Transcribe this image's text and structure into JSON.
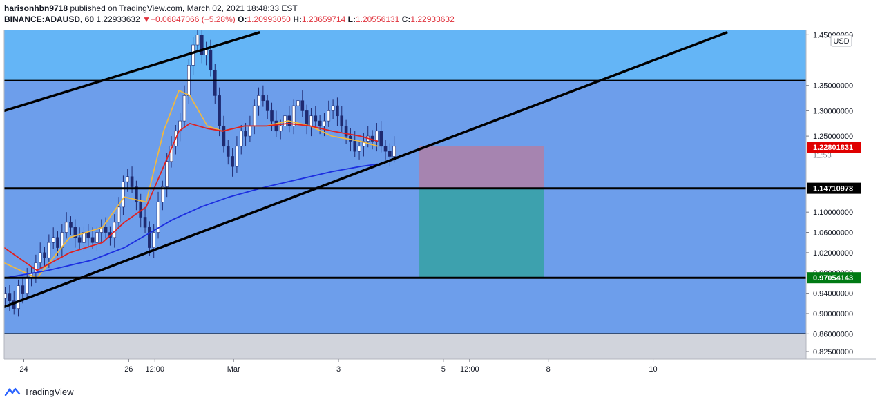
{
  "header": {
    "author": "harisonhbn9718",
    "published": "published on TradingView.com, March 02, 2021 18:48:33 EST",
    "symbol": "BINANCE:ADAUSD, 60",
    "last": "1.22933632",
    "change_arrow": "▼",
    "change": "−0.06847066 (−5.28%)",
    "o_label": "O:",
    "o_value": "1.20993050",
    "h_label": "H:",
    "h_value": "1.23659714",
    "l_label": "L:",
    "l_value": "1.20556131",
    "c_label": "C:",
    "c_value": "1.22933632"
  },
  "footer": {
    "brand": "TradingView",
    "logo_icon": "tradingview-logo-icon"
  },
  "colors": {
    "background": "#ffffff",
    "band_light": "#64b5f6",
    "band_main": "#6d9eeb",
    "band_bottom": "#d1d4dc",
    "candle_up": "#ffffff",
    "candle_down": "#1f2a70",
    "ema_fast": "#f0b840",
    "ema_mid": "#e02020",
    "ema_slow": "#1c2ee0",
    "trendline": "#000000",
    "stop_zone": "#b07fa6",
    "target_zone": "#2ea19a",
    "label_red": "#e00000",
    "label_green": "#007a14",
    "label_black": "#000000"
  },
  "chart_data": {
    "type": "candlestick",
    "symbol": "BINANCE:ADAUSD",
    "interval": "60",
    "currency_label": "USD",
    "y_axis": {
      "scale": "linear",
      "ylim": [
        0.81,
        1.46
      ],
      "ticks": [
        "1.45000000",
        "1.35000000",
        "1.30000000",
        "1.25000000",
        "1.10000000",
        "1.06000000",
        "1.02000000",
        "0.98000000",
        "0.94000000",
        "0.90000000",
        "0.86000000",
        "0.82500000"
      ],
      "tick_values": [
        1.45,
        1.35,
        1.3,
        1.25,
        1.1,
        1.06,
        1.02,
        0.98,
        0.94,
        0.9,
        0.86,
        0.825
      ]
    },
    "x_axis": {
      "labels": [
        "24",
        "26",
        "12:00",
        "Mar",
        "3",
        "5",
        "12:00",
        "8",
        "10"
      ],
      "label_times": [
        24,
        72,
        84,
        120,
        168,
        216,
        228,
        264,
        312
      ],
      "range": [
        15,
        382
      ],
      "units": "hours from Feb 23 00:00"
    },
    "price_labels": {
      "last": "1.22933632",
      "countdown": "11:53",
      "red": "1.22801831",
      "black": "1.14710978",
      "green": "0.97054143"
    },
    "levels": {
      "resistance": 1.36,
      "support_mid": 1.147,
      "support_low": 0.9705,
      "bottom": 0.86
    },
    "trendlines": [
      {
        "from": [
          15,
          1.3
        ],
        "to": [
          132,
          1.455
        ]
      },
      {
        "from": [
          15,
          0.913
        ],
        "to": [
          346,
          1.455
        ]
      }
    ],
    "position": {
      "entry": 1.147,
      "stop": 1.23,
      "target": 0.9705,
      "from_time": 205,
      "to_time": 262
    },
    "candles_close": [
      0.94,
      0.925,
      0.91,
      0.955,
      0.94,
      0.97,
      0.98,
      1.0,
      1.02,
      1.01,
      1.04,
      1.05,
      1.03,
      1.06,
      1.08,
      1.07,
      1.05,
      1.04,
      1.06,
      1.05,
      1.04,
      1.06,
      1.07,
      1.06,
      1.05,
      1.08,
      1.11,
      1.16,
      1.17,
      1.15,
      1.12,
      1.09,
      1.07,
      1.03,
      1.06,
      1.12,
      1.15,
      1.2,
      1.23,
      1.26,
      1.28,
      1.33,
      1.39,
      1.43,
      1.45,
      1.41,
      1.42,
      1.38,
      1.33,
      1.27,
      1.23,
      1.21,
      1.19,
      1.23,
      1.26,
      1.25,
      1.27,
      1.31,
      1.33,
      1.32,
      1.3,
      1.28,
      1.26,
      1.27,
      1.29,
      1.27,
      1.31,
      1.32,
      1.3,
      1.27,
      1.29,
      1.28,
      1.27,
      1.28,
      1.3,
      1.31,
      1.29,
      1.27,
      1.25,
      1.24,
      1.22,
      1.23,
      1.24,
      1.25,
      1.24,
      1.26,
      1.23,
      1.22,
      1.21,
      1.23
    ],
    "series": [
      {
        "role": "ema_fast",
        "x": [
          15,
          30,
          45,
          60,
          70,
          80,
          88,
          95,
          100,
          108,
          115,
          125,
          135,
          145,
          155,
          165,
          178,
          186
        ],
        "y": [
          1.0,
          0.97,
          1.05,
          1.07,
          1.13,
          1.12,
          1.26,
          1.34,
          1.33,
          1.27,
          1.26,
          1.27,
          1.27,
          1.28,
          1.27,
          1.25,
          1.24,
          1.23
        ]
      },
      {
        "role": "ema_mid",
        "x": [
          15,
          30,
          45,
          60,
          70,
          80,
          88,
          95,
          100,
          108,
          115,
          125,
          135,
          145,
          155,
          165,
          178,
          186
        ],
        "y": [
          1.03,
          0.985,
          1.02,
          1.04,
          1.08,
          1.11,
          1.19,
          1.26,
          1.275,
          1.265,
          1.26,
          1.27,
          1.27,
          1.275,
          1.27,
          1.26,
          1.25,
          1.24
        ]
      },
      {
        "role": "ema_slow",
        "x": [
          15,
          35,
          55,
          70,
          82,
          92,
          105,
          118,
          135,
          150,
          165,
          178,
          186
        ],
        "y": [
          0.97,
          0.985,
          1.005,
          1.03,
          1.06,
          1.085,
          1.11,
          1.13,
          1.15,
          1.165,
          1.18,
          1.19,
          1.195
        ]
      }
    ]
  }
}
